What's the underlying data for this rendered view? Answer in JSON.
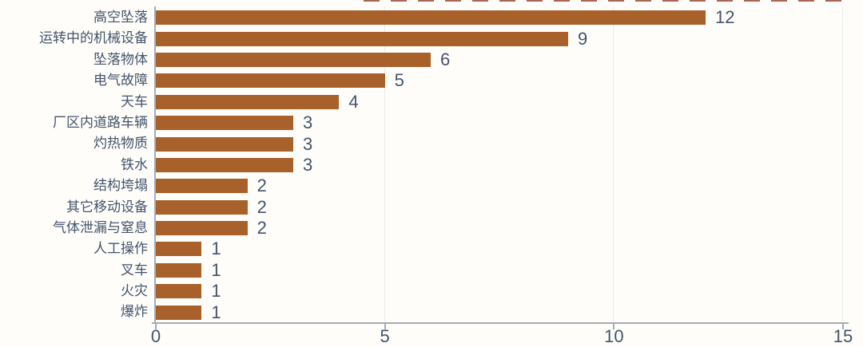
{
  "chart_data": {
    "type": "bar",
    "orientation": "horizontal",
    "title": "",
    "xlabel": "",
    "ylabel": "",
    "categories": [
      "高空坠落",
      "运转中的机械设备",
      "坠落物体",
      "电气故障",
      "天车",
      "厂区内道路车辆",
      "灼热物质",
      "铁水",
      "结构垮塌",
      "其它移动设备",
      "气体泄漏与窒息",
      "人工操作",
      "叉车",
      "火灾",
      "爆炸"
    ],
    "values": [
      12,
      9,
      6,
      5,
      4,
      3,
      3,
      3,
      2,
      2,
      2,
      1,
      1,
      1,
      1
    ],
    "data_labels": [
      12,
      9,
      6,
      5,
      4,
      3,
      3,
      3,
      2,
      2,
      2,
      1,
      1,
      1,
      1
    ],
    "x_ticks": [
      0,
      5,
      10,
      15
    ],
    "xlim": [
      0,
      15
    ],
    "grid": true,
    "legend": false,
    "colors": {
      "bar": "#A8612B",
      "text": "#44546A",
      "axis_line": "#A7ADB3",
      "gridline": "#EAEBE8",
      "top_fragment": "#9C4A36",
      "background": "#FEFDFA"
    }
  }
}
